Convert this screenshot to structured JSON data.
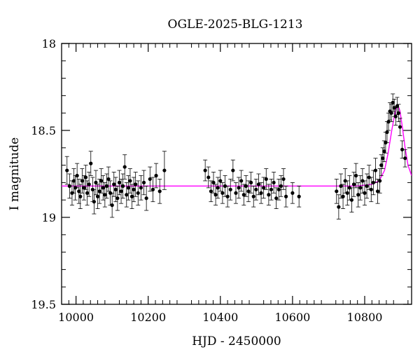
{
  "chart_data": {
    "type": "scatter",
    "title": "OGLE-2025-BLG-1213",
    "xlabel": "HJD - 2450000",
    "ylabel": "I magnitude",
    "xlim": [
      9960,
      10930
    ],
    "ylim": [
      19.5,
      18.0
    ],
    "y_inverted": true,
    "grid": false,
    "legend": "none",
    "x_ticks": [
      10000,
      10200,
      10400,
      10600,
      10800
    ],
    "x_tick_labels": [
      "10000",
      "10200",
      "10400",
      "10600",
      "10800"
    ],
    "y_ticks": [
      18.0,
      18.5,
      19.0,
      19.5
    ],
    "y_tick_labels": [
      "18",
      "18.5",
      "19",
      "19.5"
    ],
    "colors": {
      "points": "#000000",
      "model": "#ff00ff",
      "frame": "#000000"
    },
    "series": [
      {
        "kind": "points_with_errorbars",
        "x": [
          9975,
          9982,
          9989,
          9994,
          9998,
          10003,
          10008,
          10012,
          10017,
          10022,
          10027,
          10031,
          10036,
          10041,
          10046,
          10050,
          10055,
          10060,
          10065,
          10070,
          10075,
          10080,
          10085,
          10090,
          10095,
          10100,
          10105,
          10110,
          10115,
          10120,
          10125,
          10130,
          10135,
          10140,
          10145,
          10150,
          10155,
          10160,
          10165,
          10172,
          10180,
          10188,
          10195,
          10205,
          10213,
          10222,
          10232,
          10245,
          10358,
          10367,
          10374,
          10381,
          10387,
          10393,
          10400,
          10406,
          10413,
          10420,
          10428,
          10435,
          10443,
          10451,
          10458,
          10465,
          10471,
          10478,
          10485,
          10492,
          10499,
          10506,
          10513,
          10520,
          10527,
          10534,
          10541,
          10548,
          10555,
          10562,
          10568,
          10575,
          10582,
          10600,
          10618,
          10722,
          10728,
          10734,
          10740,
          10746,
          10752,
          10758,
          10764,
          10770,
          10776,
          10782,
          10788,
          10794,
          10800,
          10806,
          10812,
          10818,
          10824,
          10830,
          10836,
          10842,
          10846,
          10850,
          10854,
          10858,
          10862,
          10866,
          10870,
          10874,
          10878,
          10882,
          10886,
          10890,
          10894,
          10898,
          10904,
          10912
        ],
        "y": [
          18.73,
          18.82,
          18.86,
          18.79,
          18.83,
          18.76,
          18.85,
          18.88,
          18.79,
          18.83,
          18.77,
          18.86,
          18.81,
          18.69,
          18.84,
          18.91,
          18.8,
          18.88,
          18.85,
          18.79,
          18.83,
          18.87,
          18.82,
          18.78,
          18.86,
          18.93,
          18.81,
          18.84,
          18.89,
          18.8,
          18.85,
          18.82,
          18.71,
          18.87,
          18.83,
          18.79,
          18.88,
          18.84,
          18.81,
          18.86,
          18.83,
          18.8,
          18.89,
          18.78,
          18.84,
          18.76,
          18.85,
          18.73,
          18.73,
          18.77,
          18.85,
          18.8,
          18.87,
          18.83,
          18.79,
          18.86,
          18.82,
          18.88,
          18.84,
          18.73,
          18.86,
          18.83,
          18.79,
          18.87,
          18.82,
          18.85,
          18.8,
          18.88,
          18.84,
          18.81,
          18.86,
          18.83,
          18.78,
          18.87,
          18.84,
          18.8,
          18.89,
          18.84,
          18.82,
          18.78,
          18.88,
          18.86,
          18.88,
          18.85,
          18.94,
          18.82,
          18.88,
          18.79,
          18.86,
          18.83,
          18.9,
          18.81,
          18.76,
          18.87,
          18.83,
          18.79,
          18.86,
          18.82,
          18.77,
          18.84,
          18.8,
          18.73,
          18.85,
          18.79,
          18.7,
          18.66,
          18.62,
          18.57,
          18.51,
          18.45,
          18.39,
          18.4,
          18.34,
          18.37,
          18.42,
          18.36,
          18.4,
          18.48,
          18.61,
          18.66
        ],
        "yerr": [
          0.08,
          0.07,
          0.07,
          0.07,
          0.07,
          0.07,
          0.07,
          0.07,
          0.07,
          0.07,
          0.07,
          0.07,
          0.07,
          0.07,
          0.07,
          0.07,
          0.07,
          0.07,
          0.07,
          0.07,
          0.07,
          0.07,
          0.07,
          0.07,
          0.07,
          0.07,
          0.07,
          0.07,
          0.07,
          0.07,
          0.07,
          0.07,
          0.07,
          0.07,
          0.07,
          0.07,
          0.07,
          0.07,
          0.07,
          0.07,
          0.07,
          0.07,
          0.07,
          0.07,
          0.07,
          0.07,
          0.07,
          0.11,
          0.06,
          0.06,
          0.06,
          0.06,
          0.06,
          0.06,
          0.06,
          0.06,
          0.06,
          0.06,
          0.06,
          0.06,
          0.06,
          0.06,
          0.06,
          0.06,
          0.06,
          0.06,
          0.06,
          0.06,
          0.06,
          0.06,
          0.06,
          0.06,
          0.06,
          0.06,
          0.06,
          0.06,
          0.06,
          0.06,
          0.06,
          0.06,
          0.06,
          0.06,
          0.06,
          0.07,
          0.07,
          0.07,
          0.07,
          0.07,
          0.07,
          0.07,
          0.07,
          0.07,
          0.07,
          0.07,
          0.07,
          0.07,
          0.07,
          0.07,
          0.07,
          0.07,
          0.07,
          0.07,
          0.07,
          0.07,
          0.06,
          0.06,
          0.06,
          0.06,
          0.06,
          0.05,
          0.05,
          0.05,
          0.05,
          0.05,
          0.05,
          0.05,
          0.05,
          0.05,
          0.05,
          0.05
        ]
      },
      {
        "kind": "model_curve",
        "x": [
          9960,
          10700,
          10780,
          10820,
          10840,
          10855,
          10865,
          10875,
          10882,
          10888,
          10893,
          10898,
          10905,
          10912,
          10920,
          10930
        ],
        "y": [
          18.82,
          18.82,
          18.82,
          18.81,
          18.79,
          18.73,
          18.63,
          18.5,
          18.42,
          18.37,
          18.36,
          18.39,
          18.49,
          18.6,
          18.7,
          18.76
        ]
      }
    ]
  }
}
